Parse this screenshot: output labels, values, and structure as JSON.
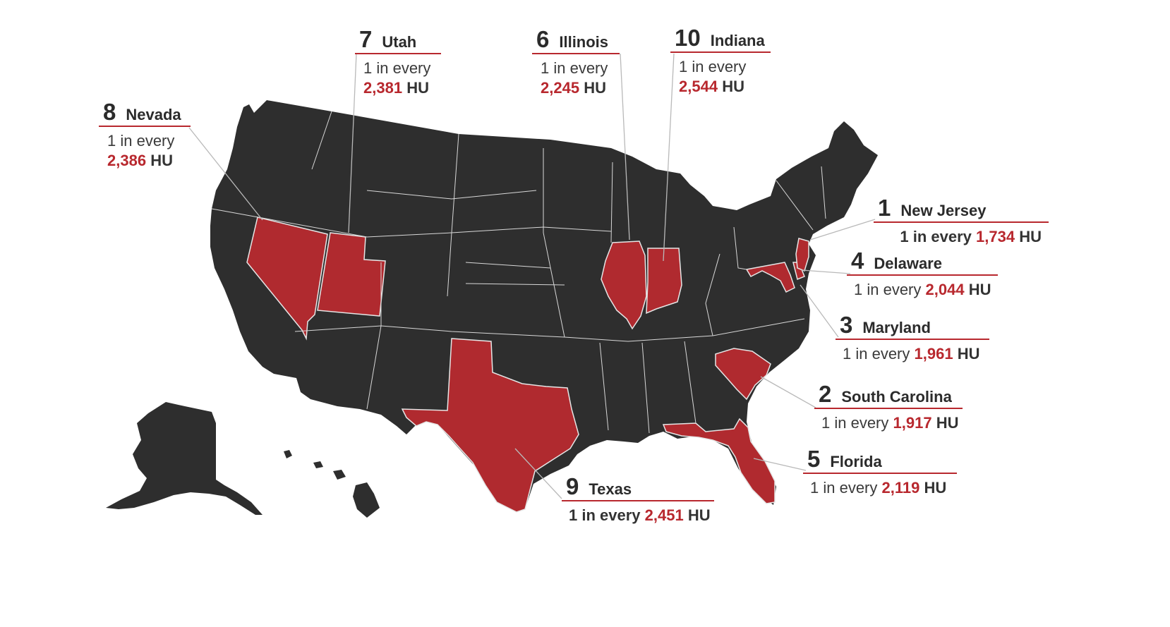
{
  "colors": {
    "state": "#2e2e2e",
    "highlight": "#b02a2f",
    "accent_line": "#b8282e",
    "border": "#cfcfcf"
  },
  "rankings": [
    {
      "rank": "1",
      "state": "New Jersey",
      "prefix": "1 in every",
      "value": "1,734",
      "unit": "HU"
    },
    {
      "rank": "2",
      "state": "South Carolina",
      "prefix": "1 in every",
      "value": "1,917",
      "unit": "HU"
    },
    {
      "rank": "3",
      "state": "Maryland",
      "prefix": "1 in every",
      "value": "1,961",
      "unit": "HU"
    },
    {
      "rank": "4",
      "state": "Delaware",
      "prefix": "1 in every",
      "value": "2,044",
      "unit": "HU"
    },
    {
      "rank": "5",
      "state": "Florida",
      "prefix": "1 in every",
      "value": "2,119",
      "unit": "HU"
    },
    {
      "rank": "6",
      "state": "Illinois",
      "prefix": "1 in every",
      "value": "2,245",
      "unit": "HU"
    },
    {
      "rank": "7",
      "state": "Utah",
      "prefix": "1 in every",
      "value": "2,381",
      "unit": "HU"
    },
    {
      "rank": "8",
      "state": "Nevada",
      "prefix": "1 in every",
      "value": "2,386",
      "unit": "HU"
    },
    {
      "rank": "9",
      "state": "Texas",
      "prefix": "1 in every",
      "value": "2,451",
      "unit": "HU"
    },
    {
      "rank": "10",
      "state": "Indiana",
      "prefix": "1 in every",
      "value": "2,544",
      "unit": "HU"
    }
  ]
}
